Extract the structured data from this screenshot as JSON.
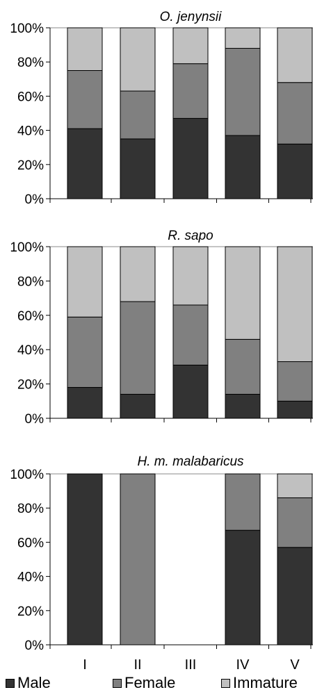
{
  "chart_data": [
    {
      "type": "bar",
      "stacked": true,
      "title": "O. jenynsii",
      "categories": [
        "I",
        "II",
        "III",
        "IV",
        "V"
      ],
      "series": [
        {
          "name": "Male",
          "values": [
            41,
            35,
            47,
            37,
            32
          ]
        },
        {
          "name": "Female",
          "values": [
            34,
            28,
            32,
            51,
            36
          ]
        },
        {
          "name": "Immature",
          "values": [
            25,
            37,
            21,
            12,
            32
          ]
        }
      ],
      "ylim": [
        0,
        100
      ],
      "yticks": [
        "0%",
        "20%",
        "40%",
        "60%",
        "80%",
        "100%"
      ],
      "grid": false
    },
    {
      "type": "bar",
      "stacked": true,
      "title": "R. sapo",
      "categories": [
        "I",
        "II",
        "III",
        "IV",
        "V"
      ],
      "series": [
        {
          "name": "Male",
          "values": [
            18,
            14,
            31,
            14,
            10
          ]
        },
        {
          "name": "Female",
          "values": [
            41,
            54,
            35,
            32,
            23
          ]
        },
        {
          "name": "Immature",
          "values": [
            41,
            32,
            34,
            54,
            67
          ]
        }
      ],
      "ylim": [
        0,
        100
      ],
      "yticks": [
        "0%",
        "20%",
        "40%",
        "60%",
        "80%",
        "100%"
      ],
      "grid": false
    },
    {
      "type": "bar",
      "stacked": true,
      "title": "H. m. malabaricus",
      "categories": [
        "I",
        "II",
        "III",
        "IV",
        "V"
      ],
      "series": [
        {
          "name": "Male",
          "values": [
            100,
            0,
            0,
            67,
            57
          ]
        },
        {
          "name": "Female",
          "values": [
            0,
            100,
            0,
            33,
            29
          ]
        },
        {
          "name": "Immature",
          "values": [
            0,
            0,
            0,
            0,
            14
          ]
        }
      ],
      "ylim": [
        0,
        100
      ],
      "yticks": [
        "0%",
        "20%",
        "40%",
        "60%",
        "80%",
        "100%"
      ],
      "grid": false
    }
  ],
  "colors": {
    "Male": "#333333",
    "Female": "#808080",
    "Immature": "#c0c0c0"
  },
  "legend": {
    "placement": "bottom",
    "items": [
      {
        "label": "Male",
        "color": "#333333"
      },
      {
        "label": "Female",
        "color": "#808080"
      },
      {
        "label": "Immature",
        "color": "#c0c0c0"
      }
    ]
  }
}
